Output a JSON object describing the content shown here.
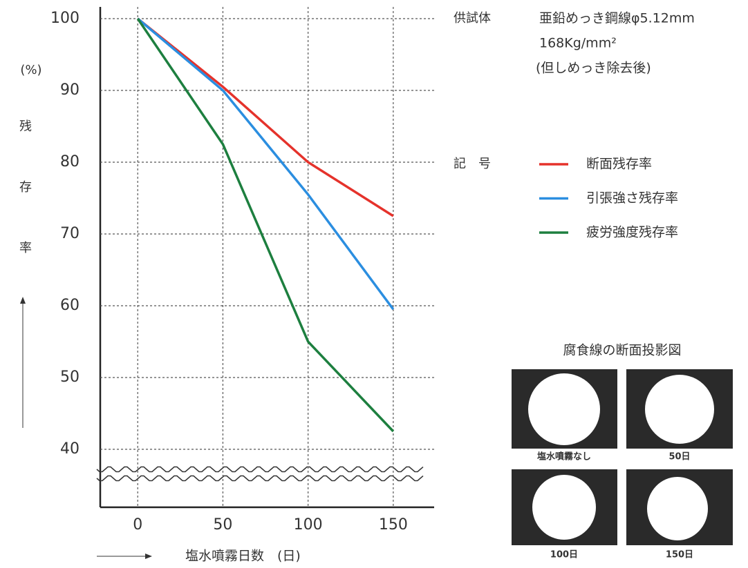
{
  "chart_data": {
    "type": "line",
    "x": [
      0,
      50,
      100,
      150
    ],
    "series": [
      {
        "name": "断面残存率",
        "color": "#e5322b",
        "values": [
          100,
          90.5,
          80,
          72.5
        ]
      },
      {
        "name": "引張強さ残存率",
        "color": "#2b8ee0",
        "values": [
          100,
          90,
          75.5,
          59.5
        ]
      },
      {
        "name": "疲労強度残存率",
        "color": "#1d7f3f",
        "values": [
          100,
          82.5,
          55,
          42.5
        ]
      }
    ],
    "xlim": [
      -22,
      174
    ],
    "ylim": [
      40,
      100
    ],
    "xticks": [
      0,
      50,
      100,
      150
    ],
    "yticks": [
      40,
      50,
      60,
      70,
      80,
      90,
      100
    ],
    "grid": true,
    "y_label_unit": "(%)",
    "y_label": "残存率",
    "x_label": "塩水噴霧日数　(日)",
    "specimen_label": "供試体",
    "specimen": [
      "亜鉛めっき鋼線φ5.12mm",
      "168Kg/mm²",
      "(但しめっき除去後)"
    ],
    "legend_title": "記　号",
    "inset_title": "腐食線の断面投影図",
    "inset_captions": [
      "塩水噴霧なし",
      "50日",
      "100日",
      "150日"
    ]
  }
}
